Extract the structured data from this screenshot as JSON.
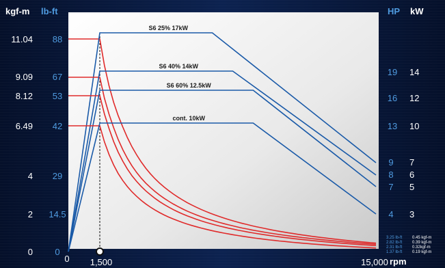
{
  "headers": {
    "kgfm": "kgf-m",
    "lbft": "lb-ft",
    "hp": "HP",
    "kw": "kW"
  },
  "colors": {
    "white": "#ffffff",
    "blue_label": "#4f9be0",
    "power_line": "#1a5aa8",
    "torque_line": "#e02a2a"
  },
  "torque_ticks": [
    {
      "kgfm": "11.04",
      "lbft": "88"
    },
    {
      "kgfm": "9.09",
      "lbft": "67"
    },
    {
      "kgfm": "8.12",
      "lbft": "53"
    },
    {
      "kgfm": "6.49",
      "lbft": "42"
    },
    {
      "kgfm": "4",
      "lbft": "29"
    },
    {
      "kgfm": "2",
      "lbft": "14.5"
    },
    {
      "kgfm": "0",
      "lbft": "0"
    }
  ],
  "power_ticks": [
    {
      "hp": "19",
      "kw": "14"
    },
    {
      "hp": "16",
      "kw": "12"
    },
    {
      "hp": "13",
      "kw": "10"
    },
    {
      "hp": "9",
      "kw": "7"
    },
    {
      "hp": "8",
      "kw": "6"
    },
    {
      "hp": "7",
      "kw": "5"
    },
    {
      "hp": "4",
      "kw": "3"
    }
  ],
  "x_ticks": {
    "zero": "0",
    "base": "1,500",
    "max": "15,000",
    "unit": "rpm"
  },
  "end_torque_labels": [
    {
      "lbft": "3.25 lb-ft",
      "kgfm": "0.45 kgf-m"
    },
    {
      "lbft": "2.82 lb-ft",
      "kgfm": "0.39 kgf-m"
    },
    {
      "lbft": "2.31 lb-ft",
      "kgfm": "0.32kgf-m"
    },
    {
      "lbft": "1.37 lb-ft",
      "kgfm": "0.19 kgf-m"
    }
  ],
  "chart_data": {
    "type": "line",
    "title": "",
    "xlabel": "rpm",
    "xlim": [
      0,
      15000
    ],
    "base_speed_rpm": 1500,
    "series": [
      {
        "name": "S6 25% 17kW",
        "power_kw": [
          [
            0,
            0
          ],
          [
            1500,
            17
          ],
          [
            7000,
            17
          ],
          [
            15000,
            7
          ]
        ],
        "torque_kgfm": [
          [
            0,
            11.04
          ],
          [
            1500,
            11.04
          ],
          [
            15000,
            0.45
          ]
        ]
      },
      {
        "name": "S6 40% 14kW",
        "power_kw": [
          [
            0,
            0
          ],
          [
            1500,
            14
          ],
          [
            8000,
            14
          ],
          [
            15000,
            6
          ]
        ],
        "torque_kgfm": [
          [
            0,
            9.09
          ],
          [
            1500,
            9.09
          ],
          [
            15000,
            0.39
          ]
        ]
      },
      {
        "name": "S6 60% 12.5kW",
        "power_kw": [
          [
            0,
            0
          ],
          [
            1500,
            12.5
          ],
          [
            9000,
            12.5
          ],
          [
            15000,
            5
          ]
        ],
        "torque_kgfm": [
          [
            0,
            8.12
          ],
          [
            1500,
            8.12
          ],
          [
            15000,
            0.32
          ]
        ]
      },
      {
        "name": "cont. 10kW",
        "power_kw": [
          [
            0,
            0
          ],
          [
            1500,
            10
          ],
          [
            9000,
            10
          ],
          [
            15000,
            3
          ]
        ],
        "torque_kgfm": [
          [
            0,
            6.49
          ],
          [
            1500,
            6.49
          ],
          [
            15000,
            0.19
          ]
        ]
      }
    ]
  }
}
